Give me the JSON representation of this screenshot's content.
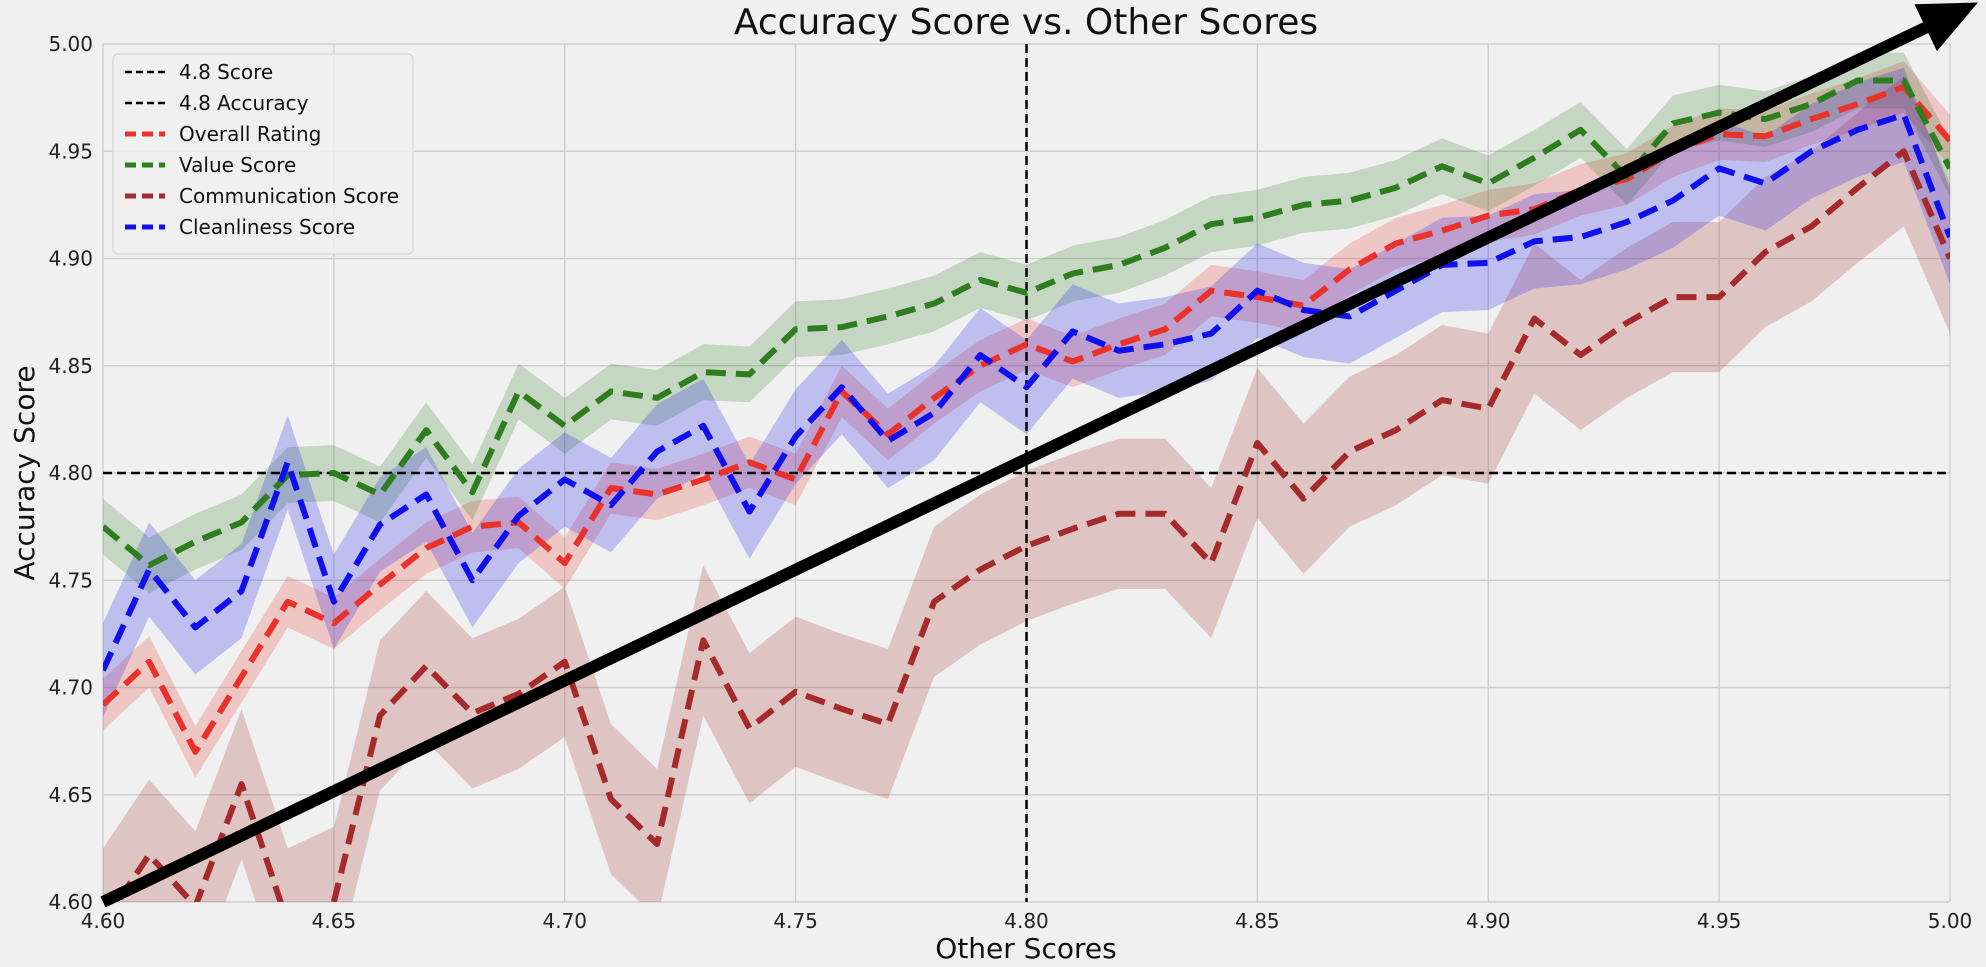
{
  "chart_data": {
    "type": "line",
    "title": "Accuracy Score vs. Other Scores",
    "xlabel": "Other Scores",
    "ylabel": "Accuracy Score",
    "xlim": [
      4.6,
      5.0
    ],
    "ylim": [
      4.6,
      5.0
    ],
    "xticks": [
      "4.60",
      "4.65",
      "4.70",
      "4.75",
      "4.80",
      "4.85",
      "4.90",
      "4.95",
      "5.00"
    ],
    "yticks": [
      "4.60",
      "4.65",
      "4.70",
      "4.75",
      "4.80",
      "4.85",
      "4.90",
      "4.95",
      "5.00"
    ],
    "grid": true,
    "legend_position": "top-left",
    "reference_lines": [
      {
        "name": "4.8 Score",
        "orientation": "vertical",
        "value": 4.8,
        "color": "#000000"
      },
      {
        "name": "4.8 Accuracy",
        "orientation": "horizontal",
        "value": 4.8,
        "color": "#000000"
      }
    ],
    "trend_arrow": {
      "from": [
        4.6,
        4.6
      ],
      "to": [
        5.0,
        5.01
      ],
      "color": "#000000"
    },
    "x": [
      4.6,
      4.61,
      4.62,
      4.63,
      4.64,
      4.65,
      4.66,
      4.67,
      4.68,
      4.69,
      4.7,
      4.71,
      4.72,
      4.73,
      4.74,
      4.75,
      4.76,
      4.77,
      4.78,
      4.79,
      4.8,
      4.81,
      4.82,
      4.83,
      4.84,
      4.85,
      4.86,
      4.87,
      4.88,
      4.89,
      4.9,
      4.91,
      4.92,
      4.93,
      4.94,
      4.95,
      4.96,
      4.97,
      4.98,
      4.99,
      5.0
    ],
    "series": [
      {
        "name": "Overall Rating",
        "color": "#e8322a",
        "values": [
          4.692,
          4.712,
          4.67,
          4.705,
          4.74,
          4.73,
          4.748,
          4.765,
          4.775,
          4.777,
          4.758,
          4.793,
          4.79,
          4.797,
          4.805,
          4.797,
          4.838,
          4.818,
          4.835,
          4.85,
          4.86,
          4.852,
          4.86,
          4.867,
          4.885,
          4.882,
          4.878,
          4.895,
          4.907,
          4.913,
          4.92,
          4.923,
          4.932,
          4.937,
          4.95,
          4.958,
          4.957,
          4.965,
          4.972,
          4.98,
          4.955
        ],
        "band": 0.012
      },
      {
        "name": "Value Score",
        "color": "#2e7d1e",
        "values": [
          4.775,
          4.757,
          4.768,
          4.777,
          4.799,
          4.8,
          4.79,
          4.82,
          4.791,
          4.838,
          4.822,
          4.838,
          4.835,
          4.847,
          4.846,
          4.867,
          4.868,
          4.873,
          4.879,
          4.89,
          4.884,
          4.893,
          4.897,
          4.905,
          4.916,
          4.919,
          4.925,
          4.927,
          4.933,
          4.943,
          4.935,
          4.947,
          4.96,
          4.938,
          4.963,
          4.968,
          4.965,
          4.972,
          4.983,
          4.983,
          4.942
        ],
        "band": 0.013
      },
      {
        "name": "Communication Score",
        "color": "#a52a2a",
        "values": [
          4.59,
          4.622,
          4.598,
          4.655,
          4.59,
          4.6,
          4.687,
          4.71,
          4.688,
          4.697,
          4.712,
          4.648,
          4.627,
          4.722,
          4.681,
          4.698,
          4.69,
          4.683,
          4.74,
          4.755,
          4.766,
          4.774,
          4.781,
          4.781,
          4.758,
          4.814,
          4.788,
          4.81,
          4.82,
          4.834,
          4.83,
          4.872,
          4.855,
          4.87,
          4.882,
          4.882,
          4.903,
          4.915,
          4.933,
          4.95,
          4.9
        ],
        "band": 0.035
      },
      {
        "name": "Cleanliness Score",
        "color": "#1010ee",
        "values": [
          4.708,
          4.755,
          4.728,
          4.745,
          4.805,
          4.74,
          4.776,
          4.79,
          4.75,
          4.78,
          4.797,
          4.785,
          4.81,
          4.822,
          4.782,
          4.817,
          4.84,
          4.815,
          4.828,
          4.855,
          4.84,
          4.866,
          4.857,
          4.86,
          4.865,
          4.885,
          4.876,
          4.873,
          4.885,
          4.897,
          4.898,
          4.908,
          4.91,
          4.917,
          4.927,
          4.942,
          4.935,
          4.95,
          4.96,
          4.967,
          4.91
        ],
        "band": 0.022
      }
    ]
  }
}
